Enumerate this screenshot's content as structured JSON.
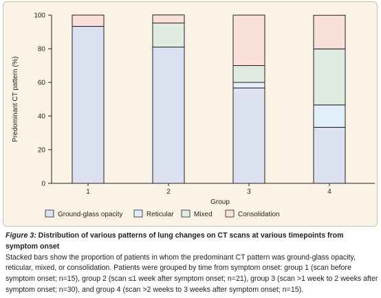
{
  "colors": {
    "panel_bg": "#fbf3e6",
    "ground_glass_opacity": "#dde2f2",
    "reticular": "#e1f0f8",
    "mixed": "#e0ece2",
    "consolidation": "#f9e0da",
    "stroke": "#1e1e1e"
  },
  "chart_data": {
    "type": "bar",
    "stacked": true,
    "title": "",
    "xlabel": "Group",
    "ylabel": "Predominant CT pattern (%)",
    "ylim": [
      0,
      100
    ],
    "yticks": [
      0,
      20,
      40,
      60,
      80,
      100
    ],
    "categories": [
      "1",
      "2",
      "3",
      "4"
    ],
    "series": [
      {
        "name": "Ground-glass opacity",
        "values": [
          93.3,
          81.0,
          56.7,
          33.3
        ]
      },
      {
        "name": "Reticular",
        "values": [
          0,
          0,
          3.3,
          13.3
        ]
      },
      {
        "name": "Mixed",
        "values": [
          0,
          14.3,
          10.0,
          33.3
        ]
      },
      {
        "name": "Consolidation",
        "values": [
          6.7,
          4.8,
          30.0,
          20.0
        ]
      }
    ],
    "legend_position": "bottom",
    "grid": false
  },
  "caption": {
    "figure_label": "Figure 3:",
    "title_line1": " Distribution of various patterns of lung changes on CT scans at various timepoints from",
    "title_line2": "symptom onset",
    "body_lines": [
      "Stacked bars show the proportion of patients in whom the predominant CT pattern was ground-glass opacity,",
      "reticular, mixed, or consolidation. Patients were grouped by time from symptom onset: group 1 (scan before",
      "symptom onset; n=15), group 2 (scan ≤1 week after symptom onset; n=21), group 3 (scan >1 week to 2 weeks after",
      "symptom onset; n=30), and group 4 (scan >2 weeks to 3 weeks after symptom onset; n=15)."
    ]
  }
}
